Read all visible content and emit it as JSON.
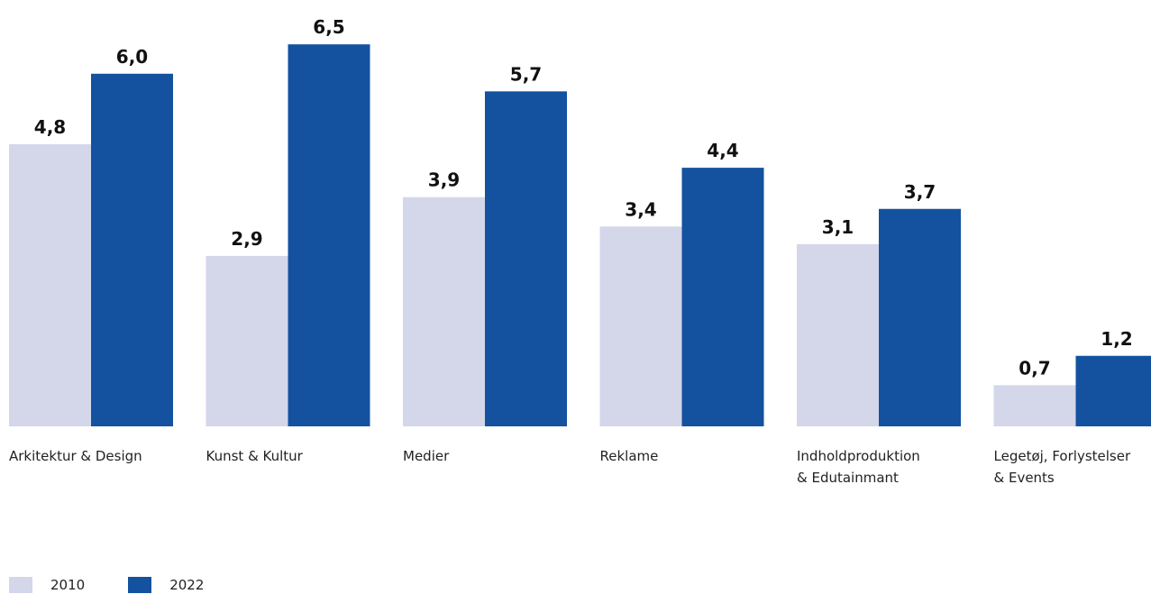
{
  "chart_data": {
    "type": "bar",
    "categories": [
      "Arkitektur & Design",
      "Kunst & Kultur",
      "Medier",
      "Reklame",
      "Indholdproduktion\n& Edutainmant",
      "Legetøj, Forlystelser\n& Events"
    ],
    "series": [
      {
        "name": "2010",
        "values": [
          4.8,
          2.9,
          3.9,
          3.4,
          3.1,
          0.7
        ],
        "labels": [
          "4,8",
          "2,9",
          "3,9",
          "3,4",
          "3,1",
          "0,7"
        ]
      },
      {
        "name": "2022",
        "values": [
          6.0,
          6.5,
          5.7,
          4.4,
          3.7,
          1.2
        ],
        "labels": [
          "6,0",
          "6,5",
          "5,7",
          "4,4",
          "3,7",
          "1,2"
        ]
      }
    ],
    "ylim": [
      0,
      6.5
    ],
    "grid": false,
    "legend_position": "bottom-left"
  },
  "colors": {
    "series_2010": "#d4d6ea",
    "series_2022": "#1452a0"
  },
  "legend": {
    "item_2010": "2010",
    "item_2022": "2022"
  }
}
